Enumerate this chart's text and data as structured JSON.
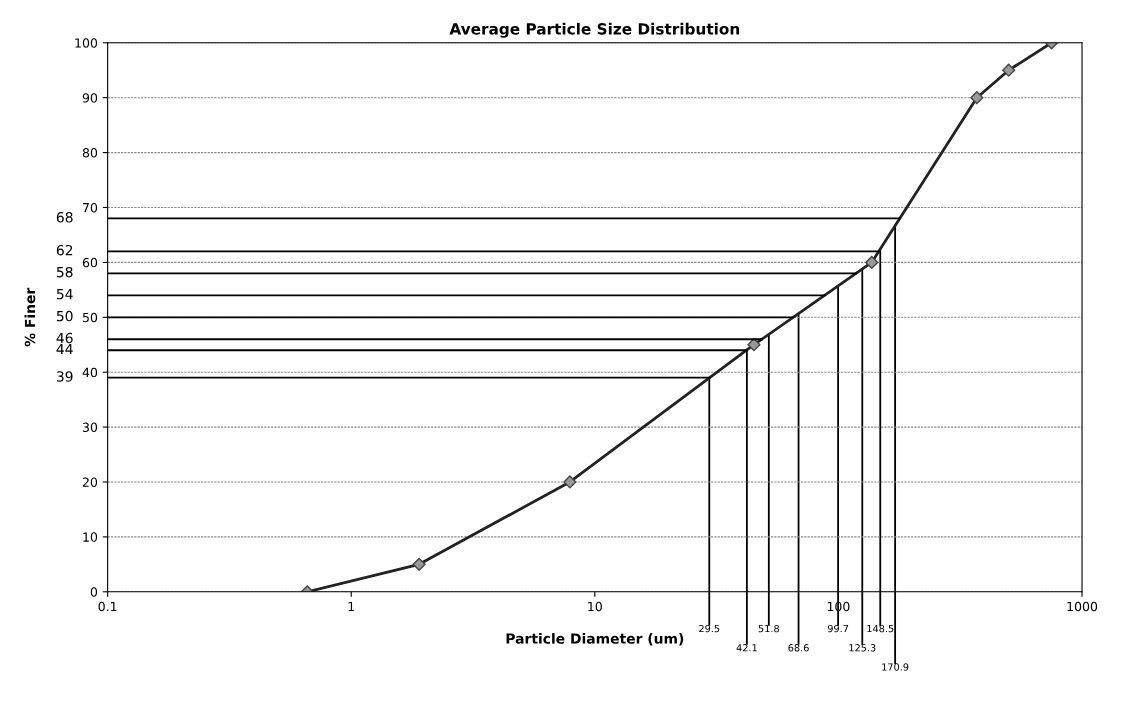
{
  "chart_data": {
    "type": "line",
    "title": "Average Particle Size Distribution",
    "xlabel": "Particle Diameter (um)",
    "ylabel": "% Finer",
    "log": "x",
    "xlim": [
      0.1,
      1000
    ],
    "xticks": [
      0.1,
      1,
      10,
      100,
      1000
    ],
    "ylim": [
      0,
      100
    ],
    "yticks": [
      0,
      10,
      20,
      30,
      40,
      50,
      60,
      70,
      80,
      90,
      100
    ],
    "grid": "y",
    "marker": "diamond",
    "line_style": "solid",
    "series": [
      {
        "color": "#222222",
        "x": [
          0.66,
          1.9,
          7.9,
          45,
          137,
          370,
          500,
          750
        ],
        "values": [
          0,
          5,
          20,
          45,
          60,
          90,
          95,
          100
        ]
      }
    ],
    "ref_lines": [
      {
        "axis": "y",
        "value": 39,
        "label": "39",
        "color": "#000000"
      },
      {
        "axis": "y",
        "value": 44,
        "label": "44",
        "color": "#000000"
      },
      {
        "axis": "y",
        "value": 46,
        "label": "46",
        "color": "#000000"
      },
      {
        "axis": "y",
        "value": 50,
        "label": "50",
        "color": "#000000"
      },
      {
        "axis": "y",
        "value": 54,
        "label": "54",
        "color": "#000000"
      },
      {
        "axis": "y",
        "value": 58,
        "label": "58",
        "color": "#000000"
      },
      {
        "axis": "y",
        "value": 62,
        "label": "62",
        "color": "#000000"
      },
      {
        "axis": "y",
        "value": 68,
        "label": "68",
        "color": "#000000"
      },
      {
        "axis": "x",
        "value": 29.5,
        "label": "29.5",
        "color": "#000000"
      },
      {
        "axis": "x",
        "value": 42.1,
        "label": "42.1",
        "color": "#000000"
      },
      {
        "axis": "x",
        "value": 51.8,
        "label": "51.8",
        "color": "#000000"
      },
      {
        "axis": "x",
        "value": 68.6,
        "label": "68.6",
        "color": "#000000"
      },
      {
        "axis": "x",
        "value": 99.7,
        "label": "99.7",
        "color": "#000000"
      },
      {
        "axis": "x",
        "value": 125.3,
        "label": "125.3",
        "color": "#000000"
      },
      {
        "axis": "x",
        "value": 148.5,
        "label": "148.5",
        "color": "#000000"
      },
      {
        "axis": "x",
        "value": 170.9,
        "label": "170.9",
        "color": "#000000"
      }
    ]
  }
}
